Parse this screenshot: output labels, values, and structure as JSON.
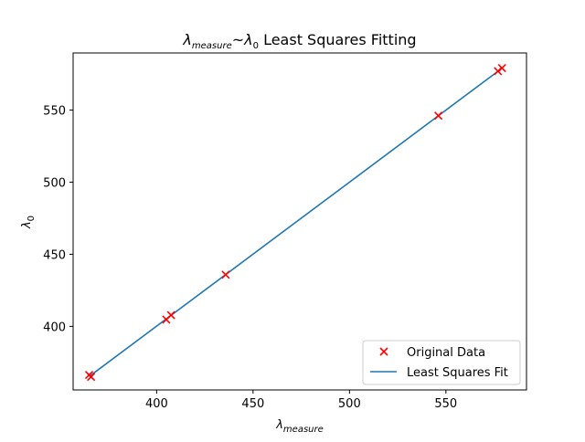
{
  "chart_data": {
    "type": "scatter",
    "title": "λmeasure~λ0 Least Squares Fitting",
    "title_parts": {
      "lambda": "λ",
      "sub1": "measure",
      "tilde": "~",
      "sub2": "0",
      "rest": " Least Squares Fitting"
    },
    "xlabel": "λmeasure",
    "xlabel_parts": {
      "lambda": "λ",
      "sub": "measure"
    },
    "ylabel": "λ0",
    "ylabel_parts": {
      "lambda": "λ",
      "sub": "0"
    },
    "xlim": [
      356.7,
      591.8
    ],
    "ylim": [
      355.9,
      589.6
    ],
    "xticks": [
      400,
      450,
      500,
      550
    ],
    "yticks": [
      400,
      450,
      500,
      550
    ],
    "xtick_labels": [
      "400",
      "450",
      "500",
      "550"
    ],
    "ytick_labels": [
      "400",
      "450",
      "500",
      "550"
    ],
    "grid": false,
    "legend_position": "lower-right",
    "series": [
      {
        "name": "Original Data",
        "kind": "scatter",
        "marker": "x",
        "color": "#ff0000",
        "x": [
          365.0,
          366.0,
          405.0,
          407.5,
          435.8,
          546.1,
          577.0,
          579.1
        ],
        "y": [
          366.3,
          365.0,
          404.7,
          407.8,
          435.8,
          546.1,
          577.0,
          579.1
        ]
      },
      {
        "name": "Least Squares Fit",
        "kind": "line",
        "color": "#1f77b4",
        "x": [
          365.0,
          579.1
        ],
        "y": [
          365.2,
          579.0
        ]
      }
    ]
  }
}
